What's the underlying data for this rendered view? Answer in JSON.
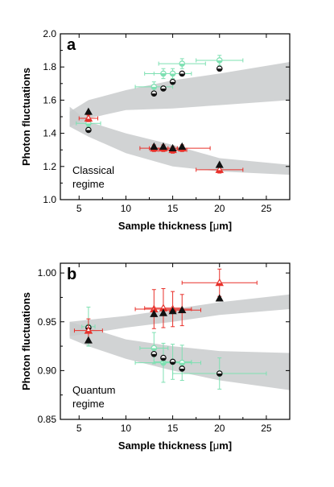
{
  "chart_data": [
    {
      "type": "scatter",
      "panel_label": "a",
      "annotation": [
        "Classical",
        "regime"
      ],
      "xlabel_parts": [
        "Sample thickness [",
        "μ",
        "m]"
      ],
      "ylabel": "Photon fluctuations",
      "xlim": [
        3,
        27.5
      ],
      "ylim": [
        1.0,
        2.0
      ],
      "xticks": [
        5,
        10,
        15,
        20,
        25
      ],
      "yticks": [
        1.0,
        1.2,
        1.4,
        1.6,
        1.8,
        2.0
      ],
      "ytick_decimals": 1,
      "bands": [
        {
          "x": [
            4,
            6,
            10,
            15,
            20,
            27.5
          ],
          "lower": [
            1.44,
            1.49,
            1.54,
            1.55,
            1.57,
            1.6
          ],
          "upper": [
            1.53,
            1.6,
            1.66,
            1.72,
            1.76,
            1.83
          ]
        },
        {
          "x": [
            4,
            6,
            10,
            15,
            20,
            27.5
          ],
          "lower": [
            1.44,
            1.38,
            1.28,
            1.2,
            1.17,
            1.15
          ],
          "upper": [
            1.56,
            1.47,
            1.4,
            1.33,
            1.25,
            1.21
          ]
        }
      ],
      "series": [
        {
          "marker": "circle",
          "color": "#7ee0b2",
          "fill": "half",
          "points": [
            {
              "x": 6,
              "y": 1.46,
              "xerr": 1.3,
              "yerr": 0.02
            },
            {
              "x": 13,
              "y": 1.68,
              "xerr": 2.0,
              "yerr": 0.03
            },
            {
              "x": 14,
              "y": 1.76,
              "xerr": 2.0,
              "yerr": 0.03
            },
            {
              "x": 15,
              "y": 1.76,
              "xerr": 2.0,
              "yerr": 0.03
            },
            {
              "x": 16,
              "y": 1.82,
              "xerr": 2.5,
              "yerr": 0.03
            },
            {
              "x": 20,
              "y": 1.84,
              "xerr": 2.5,
              "yerr": 0.03
            }
          ]
        },
        {
          "marker": "circle",
          "color": "#111111",
          "fill": "half",
          "points": [
            {
              "x": 6,
              "y": 1.42
            },
            {
              "x": 13,
              "y": 1.64
            },
            {
              "x": 14,
              "y": 1.67
            },
            {
              "x": 15,
              "y": 1.71
            },
            {
              "x": 16,
              "y": 1.76
            },
            {
              "x": 20,
              "y": 1.79
            }
          ]
        },
        {
          "marker": "triangle",
          "color": "#e8302a",
          "fill": "half",
          "points": [
            {
              "x": 6,
              "y": 1.49,
              "xerr": 1.0,
              "yerr": 0.02
            },
            {
              "x": 13,
              "y": 1.31,
              "xerr": 1.5,
              "yerr": 0.02
            },
            {
              "x": 14,
              "y": 1.31,
              "xerr": 1.5,
              "yerr": 0.02
            },
            {
              "x": 15,
              "y": 1.3,
              "xerr": 1.5,
              "yerr": 0.02
            },
            {
              "x": 16,
              "y": 1.31,
              "xerr": 3.0,
              "yerr": 0.02
            },
            {
              "x": 20,
              "y": 1.18,
              "xerr": 2.5,
              "yerr": 0.02
            }
          ]
        },
        {
          "marker": "triangle",
          "color": "#111111",
          "fill": "full",
          "points": [
            {
              "x": 6,
              "y": 1.53
            },
            {
              "x": 13,
              "y": 1.32
            },
            {
              "x": 14,
              "y": 1.32
            },
            {
              "x": 15,
              "y": 1.31
            },
            {
              "x": 16,
              "y": 1.32
            },
            {
              "x": 20,
              "y": 1.21
            }
          ]
        }
      ]
    },
    {
      "type": "scatter",
      "panel_label": "b",
      "annotation": [
        "Quantum",
        "regime"
      ],
      "xlabel_parts": [
        "Sample thickness [",
        "μ",
        "m]"
      ],
      "ylabel": "Photon fluctuations",
      "xlim": [
        3,
        27.5
      ],
      "ylim": [
        0.85,
        1.01
      ],
      "xticks": [
        5,
        10,
        15,
        20,
        25
      ],
      "yticks": [
        0.85,
        0.9,
        0.95,
        1.0
      ],
      "ytick_decimals": 2,
      "bands": [
        {
          "x": [
            4,
            6,
            10,
            15,
            20,
            27.5
          ],
          "lower": [
            0.935,
            0.938,
            0.944,
            0.95,
            0.957,
            0.963
          ],
          "upper": [
            0.95,
            0.952,
            0.956,
            0.963,
            0.97,
            0.978
          ]
        },
        {
          "x": [
            4,
            6,
            10,
            15,
            20,
            27.5
          ],
          "lower": [
            0.933,
            0.925,
            0.912,
            0.9,
            0.89,
            0.88
          ],
          "upper": [
            0.95,
            0.944,
            0.932,
            0.925,
            0.92,
            0.918
          ]
        }
      ],
      "series": [
        {
          "marker": "circle",
          "color": "#7ee0b2",
          "fill": "half",
          "points": [
            {
              "x": 6,
              "y": 0.945,
              "xerr": 0.7,
              "yerr": 0.02
            },
            {
              "x": 13,
              "y": 0.923,
              "xerr": 1.5,
              "yerr": 0.016
            },
            {
              "x": 14,
              "y": 0.908,
              "xerr": 3.0,
              "yerr": 0.02
            },
            {
              "x": 15,
              "y": 0.909,
              "xerr": 2.0,
              "yerr": 0.018
            },
            {
              "x": 16,
              "y": 0.908,
              "xerr": 2.0,
              "yerr": 0.018
            },
            {
              "x": 20,
              "y": 0.897,
              "xerr": 5.0,
              "yerr": 0.016
            }
          ]
        },
        {
          "marker": "circle",
          "color": "#111111",
          "fill": "half",
          "points": [
            {
              "x": 6,
              "y": 0.944
            },
            {
              "x": 13,
              "y": 0.917
            },
            {
              "x": 14,
              "y": 0.913
            },
            {
              "x": 15,
              "y": 0.909
            },
            {
              "x": 16,
              "y": 0.902
            },
            {
              "x": 20,
              "y": 0.897
            }
          ]
        },
        {
          "marker": "triangle",
          "color": "#e8302a",
          "fill": "half",
          "points": [
            {
              "x": 6,
              "y": 0.941,
              "xerr": 1.5,
              "yerr": 0.012
            },
            {
              "x": 13,
              "y": 0.963,
              "xerr": 2.0,
              "yerr": 0.02
            },
            {
              "x": 14,
              "y": 0.964,
              "xerr": 2.0,
              "yerr": 0.02
            },
            {
              "x": 15,
              "y": 0.963,
              "xerr": 2.0,
              "yerr": 0.018
            },
            {
              "x": 16,
              "y": 0.962,
              "xerr": 2.0,
              "yerr": 0.016
            },
            {
              "x": 20,
              "y": 0.99,
              "xerr": 4.0,
              "yerr": 0.014
            }
          ]
        },
        {
          "marker": "triangle",
          "color": "#111111",
          "fill": "full",
          "points": [
            {
              "x": 6,
              "y": 0.931
            },
            {
              "x": 13,
              "y": 0.958
            },
            {
              "x": 14,
              "y": 0.959
            },
            {
              "x": 15,
              "y": 0.961
            },
            {
              "x": 16,
              "y": 0.962
            },
            {
              "x": 20,
              "y": 0.974
            }
          ]
        }
      ]
    }
  ]
}
